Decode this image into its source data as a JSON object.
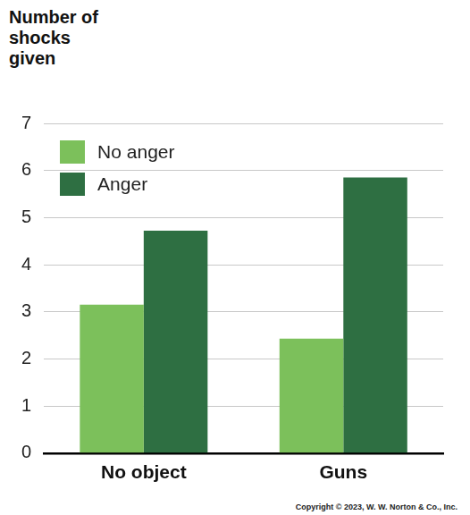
{
  "chart_data": {
    "type": "bar",
    "y_label": "Number of shocks given",
    "categories": [
      "No object",
      "Guns"
    ],
    "series": [
      {
        "name": "No anger",
        "color": "#7cc05b",
        "values": [
          3.15,
          2.43
        ]
      },
      {
        "name": "Anger",
        "color": "#2e6f42",
        "values": [
          4.72,
          5.85
        ]
      }
    ],
    "ylim": [
      0,
      7
    ],
    "yticks": [
      0,
      1,
      2,
      3,
      4,
      5,
      6,
      7
    ],
    "grid": true,
    "legend": "upper left",
    "annotations": [
      "Copyright © 2023, W. W. Norton & Co., Inc."
    ]
  }
}
